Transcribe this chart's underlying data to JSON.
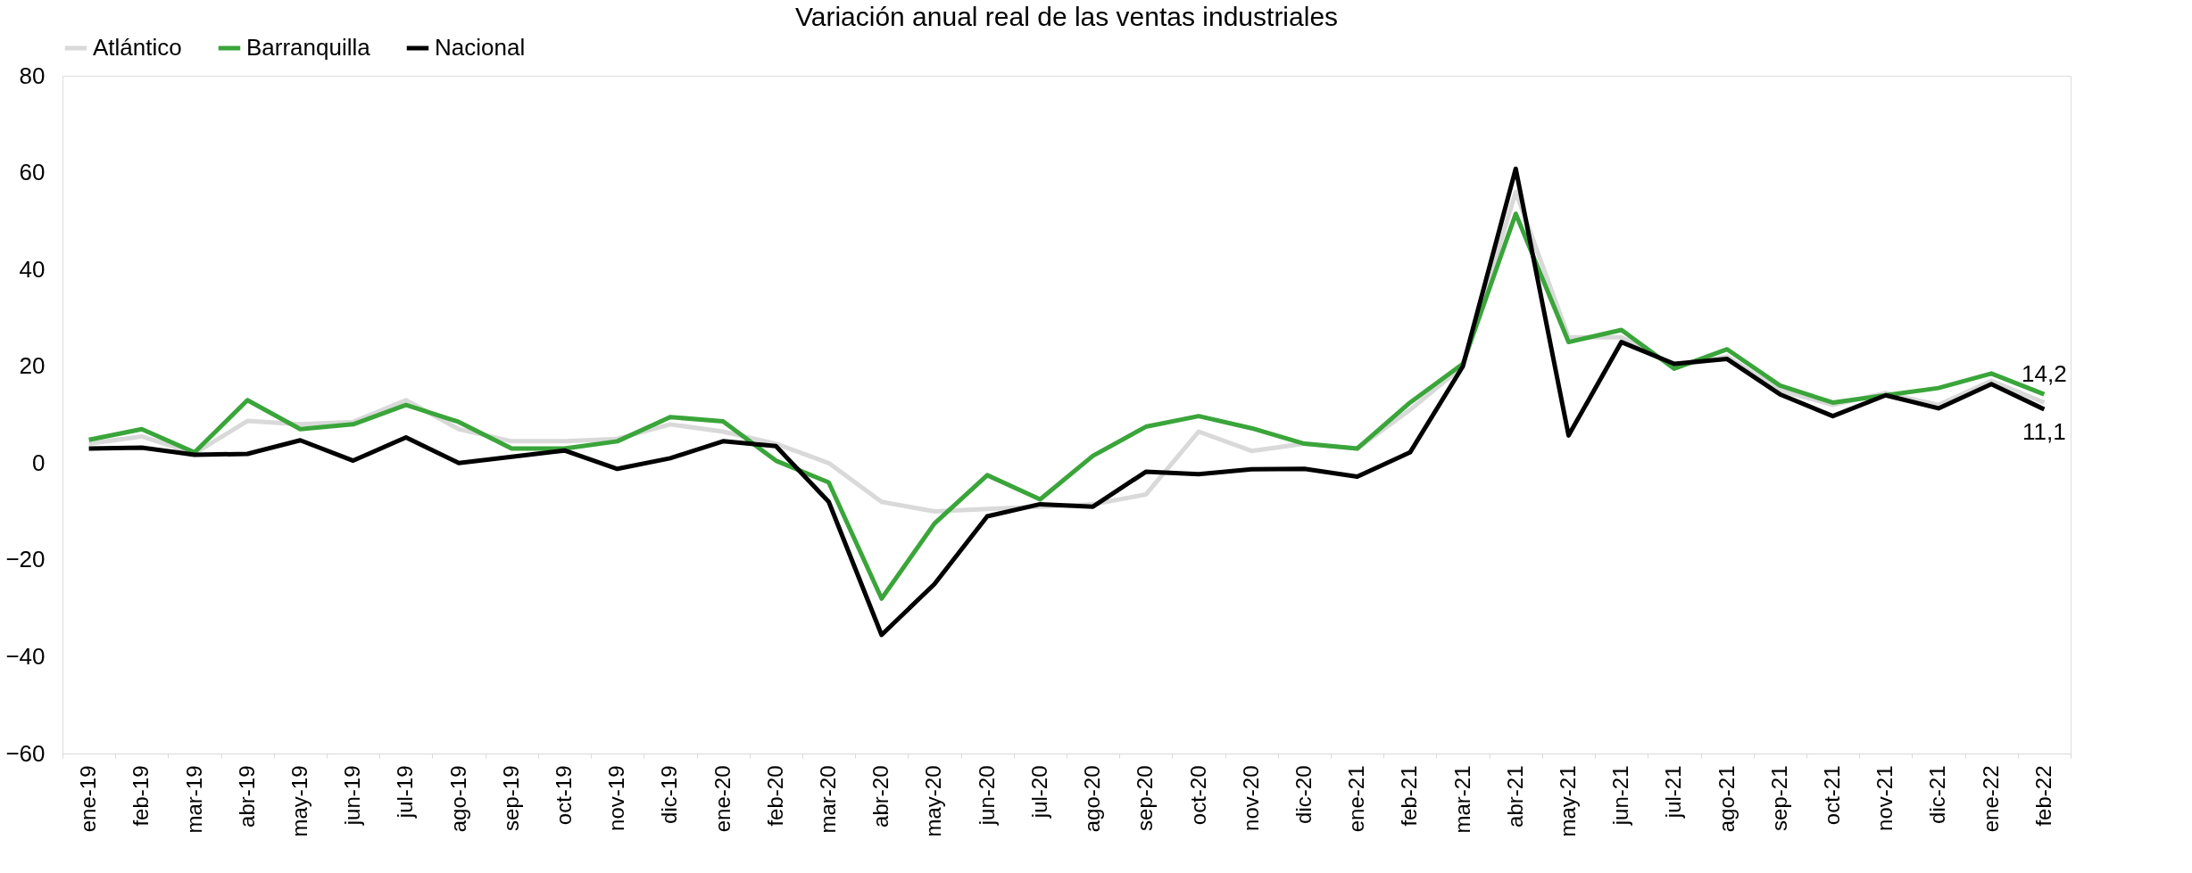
{
  "chart_data": {
    "type": "line",
    "title": "Variación anual real de las ventas industriales",
    "categories": [
      "ene-19",
      "feb-19",
      "mar-19",
      "abr-19",
      "may-19",
      "jun-19",
      "jul-19",
      "ago-19",
      "sep-19",
      "oct-19",
      "nov-19",
      "dic-19",
      "ene-20",
      "feb-20",
      "mar-20",
      "abr-20",
      "may-20",
      "jun-20",
      "jul-20",
      "ago-20",
      "sep-20",
      "oct-20",
      "nov-20",
      "dic-20",
      "ene-21",
      "feb-21",
      "mar-21",
      "abr-21",
      "may-21",
      "jun-21",
      "jul-21",
      "ago-21",
      "sep-21",
      "oct-21",
      "nov-21",
      "dic-21",
      "ene-22",
      "feb-22"
    ],
    "series": [
      {
        "name": "Atlántico",
        "color": "#d9d9d9",
        "values": [
          4,
          5.5,
          2,
          8.7,
          8,
          8.5,
          13,
          7,
          4.5,
          4.5,
          5,
          8,
          6.5,
          4,
          0,
          -8,
          -10,
          -9.5,
          -9,
          -8.5,
          -6.5,
          6.5,
          2.5,
          4,
          3,
          11,
          20,
          56,
          26,
          26,
          20,
          22,
          15,
          12,
          14.5,
          12,
          17,
          12.5
        ]
      },
      {
        "name": "Barranquilla",
        "color": "#3aa53a",
        "values": [
          4.8,
          7,
          2.2,
          13,
          7,
          8,
          12,
          8.5,
          3,
          3,
          4.5,
          9.5,
          8.6,
          0.5,
          -4,
          -28,
          -12.5,
          -2.5,
          -7.5,
          1.5,
          7.5,
          9.7,
          7.2,
          4,
          3,
          12.5,
          20.5,
          51.5,
          25,
          27.5,
          19.5,
          23.5,
          16,
          12.5,
          14,
          15.5,
          18.5,
          14.2
        ]
      },
      {
        "name": "Nacional",
        "color": "#000000",
        "values": [
          3,
          3.2,
          1.7,
          1.9,
          4.7,
          0.5,
          5.3,
          0,
          1.3,
          2.6,
          -1.2,
          1,
          4.5,
          3.5,
          -8,
          -35.5,
          -25,
          -11,
          -8.5,
          -9,
          -1.8,
          -2.3,
          -1.3,
          -1.2,
          -2.8,
          2.2,
          20,
          60.8,
          5.7,
          25,
          20.5,
          21.5,
          14.2,
          9.7,
          14,
          11.3,
          16.3,
          11.1
        ]
      }
    ],
    "annotations": [
      {
        "text": "14,2",
        "x": "feb-22",
        "y": 14.2
      },
      {
        "text": "11,1",
        "x": "feb-22",
        "y": 11.1
      }
    ],
    "ylim": [
      -60,
      80
    ],
    "yticks": [
      -60,
      -40,
      -20,
      0,
      20,
      40,
      60,
      80
    ],
    "grid": false,
    "legend": "top",
    "marker": "none",
    "line_style": "solid"
  }
}
